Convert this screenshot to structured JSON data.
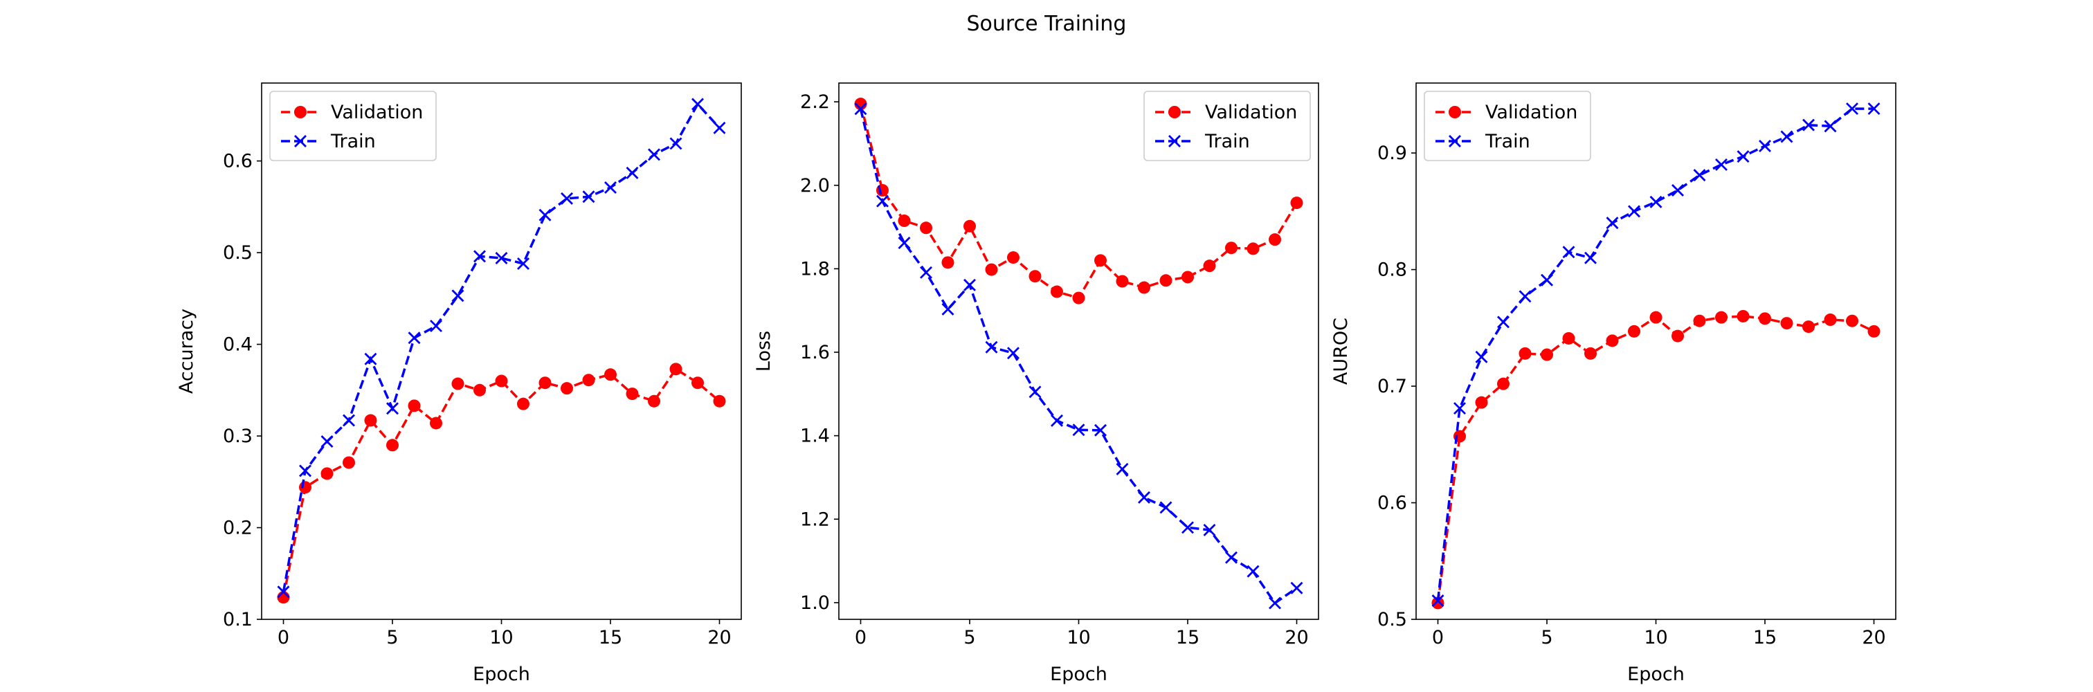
{
  "figure": {
    "title": "Source Training"
  },
  "chart_data": [
    {
      "type": "line",
      "title": "",
      "xlabel": "Epoch",
      "ylabel": "Accuracy",
      "xlim": [
        -1,
        21
      ],
      "ylim": [
        0.1,
        0.685
      ],
      "xticks": [
        0,
        5,
        10,
        15,
        20
      ],
      "yticks": [
        0.1,
        0.2,
        0.3,
        0.4,
        0.5,
        0.6
      ],
      "tick_format": 1,
      "grid": false,
      "legend": "upper-left",
      "x": [
        0,
        1,
        2,
        3,
        4,
        5,
        6,
        7,
        8,
        9,
        10,
        11,
        12,
        13,
        14,
        15,
        16,
        17,
        18,
        19,
        20
      ],
      "series": [
        {
          "name": "Validation",
          "color": "#ff0000",
          "marker": "circle",
          "linestyle": "dashed",
          "values": [
            0.124,
            0.244,
            0.259,
            0.271,
            0.317,
            0.29,
            0.333,
            0.314,
            0.357,
            0.35,
            0.36,
            0.335,
            0.358,
            0.352,
            0.361,
            0.367,
            0.346,
            0.338,
            0.373,
            0.358,
            0.338
          ]
        },
        {
          "name": "Train",
          "color": "#0000ff",
          "marker": "x",
          "linestyle": "dashed",
          "values": [
            0.13,
            0.262,
            0.294,
            0.317,
            0.384,
            0.33,
            0.407,
            0.42,
            0.453,
            0.496,
            0.494,
            0.488,
            0.541,
            0.559,
            0.561,
            0.571,
            0.587,
            0.607,
            0.619,
            0.662,
            0.636
          ]
        }
      ]
    },
    {
      "type": "line",
      "title": "",
      "xlabel": "Epoch",
      "ylabel": "Loss",
      "xlim": [
        -1,
        21
      ],
      "ylim": [
        0.96,
        2.245
      ],
      "xticks": [
        0,
        5,
        10,
        15,
        20
      ],
      "yticks": [
        1.0,
        1.2,
        1.4,
        1.6,
        1.8,
        2.0,
        2.2
      ],
      "tick_format": 1,
      "grid": false,
      "legend": "upper-right",
      "x": [
        0,
        1,
        2,
        3,
        4,
        5,
        6,
        7,
        8,
        9,
        10,
        11,
        12,
        13,
        14,
        15,
        16,
        17,
        18,
        19,
        20
      ],
      "series": [
        {
          "name": "Validation",
          "color": "#ff0000",
          "marker": "circle",
          "linestyle": "dashed",
          "values": [
            2.195,
            1.988,
            1.915,
            1.898,
            1.815,
            1.902,
            1.798,
            1.827,
            1.782,
            1.745,
            1.73,
            1.82,
            1.77,
            1.755,
            1.772,
            1.78,
            1.807,
            1.85,
            1.848,
            1.87,
            1.958
          ]
        },
        {
          "name": "Train",
          "color": "#0000ff",
          "marker": "x",
          "linestyle": "dashed",
          "values": [
            2.183,
            1.962,
            1.862,
            1.791,
            1.703,
            1.761,
            1.612,
            1.598,
            1.505,
            1.436,
            1.414,
            1.413,
            1.32,
            1.252,
            1.228,
            1.18,
            1.174,
            1.108,
            1.075,
            0.999,
            1.035
          ]
        }
      ]
    },
    {
      "type": "line",
      "title": "",
      "xlabel": "Epoch",
      "ylabel": "AUROC",
      "xlim": [
        -1,
        21
      ],
      "ylim": [
        0.5,
        0.96
      ],
      "xticks": [
        0,
        5,
        10,
        15,
        20
      ],
      "yticks": [
        0.5,
        0.6,
        0.7,
        0.8,
        0.9
      ],
      "tick_format": 1,
      "grid": false,
      "legend": "upper-left",
      "x": [
        0,
        1,
        2,
        3,
        4,
        5,
        6,
        7,
        8,
        9,
        10,
        11,
        12,
        13,
        14,
        15,
        16,
        17,
        18,
        19,
        20
      ],
      "series": [
        {
          "name": "Validation",
          "color": "#ff0000",
          "marker": "circle",
          "linestyle": "dashed",
          "values": [
            0.514,
            0.657,
            0.686,
            0.702,
            0.728,
            0.727,
            0.741,
            0.728,
            0.739,
            0.747,
            0.759,
            0.743,
            0.756,
            0.759,
            0.76,
            0.758,
            0.754,
            0.751,
            0.757,
            0.756,
            0.747
          ]
        },
        {
          "name": "Train",
          "color": "#0000ff",
          "marker": "x",
          "linestyle": "dashed",
          "values": [
            0.516,
            0.681,
            0.725,
            0.755,
            0.777,
            0.791,
            0.815,
            0.81,
            0.84,
            0.85,
            0.858,
            0.868,
            0.881,
            0.89,
            0.897,
            0.906,
            0.914,
            0.924,
            0.923,
            0.938,
            0.938
          ]
        }
      ]
    }
  ]
}
